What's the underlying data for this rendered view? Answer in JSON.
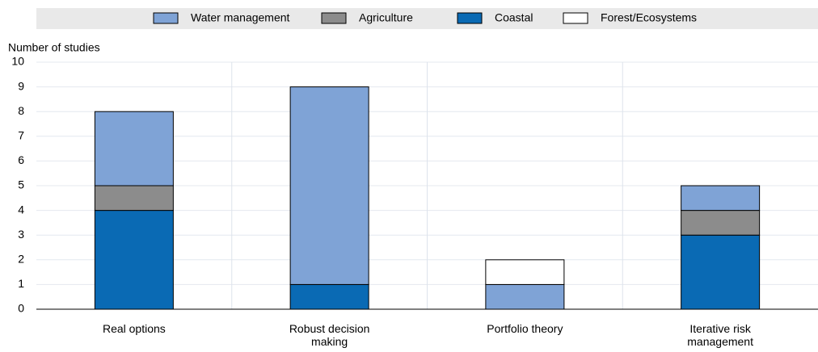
{
  "chart_data": {
    "type": "stacked_bar",
    "y_label": "Number of studies",
    "categories": [
      "Real options",
      "Robust decision making",
      "Portfolio theory",
      "Iterative risk management"
    ],
    "series": [
      {
        "name": "Water management",
        "color": "#7fa3d6",
        "values": [
          3,
          8,
          1,
          1
        ]
      },
      {
        "name": "Agriculture",
        "color": "#8c8c8c",
        "values": [
          1,
          0,
          0,
          1
        ]
      },
      {
        "name": "Coastal",
        "color": "#0a6ab4",
        "values": [
          4,
          1,
          0,
          3
        ]
      },
      {
        "name": "Forest/Ecosystems",
        "color": "#ffffff",
        "values": [
          0,
          0,
          1,
          0
        ]
      }
    ],
    "ylim": [
      0,
      10
    ],
    "yticks": [
      0,
      1,
      2,
      3,
      4,
      5,
      6,
      7,
      8,
      9,
      10
    ],
    "grid": true
  }
}
